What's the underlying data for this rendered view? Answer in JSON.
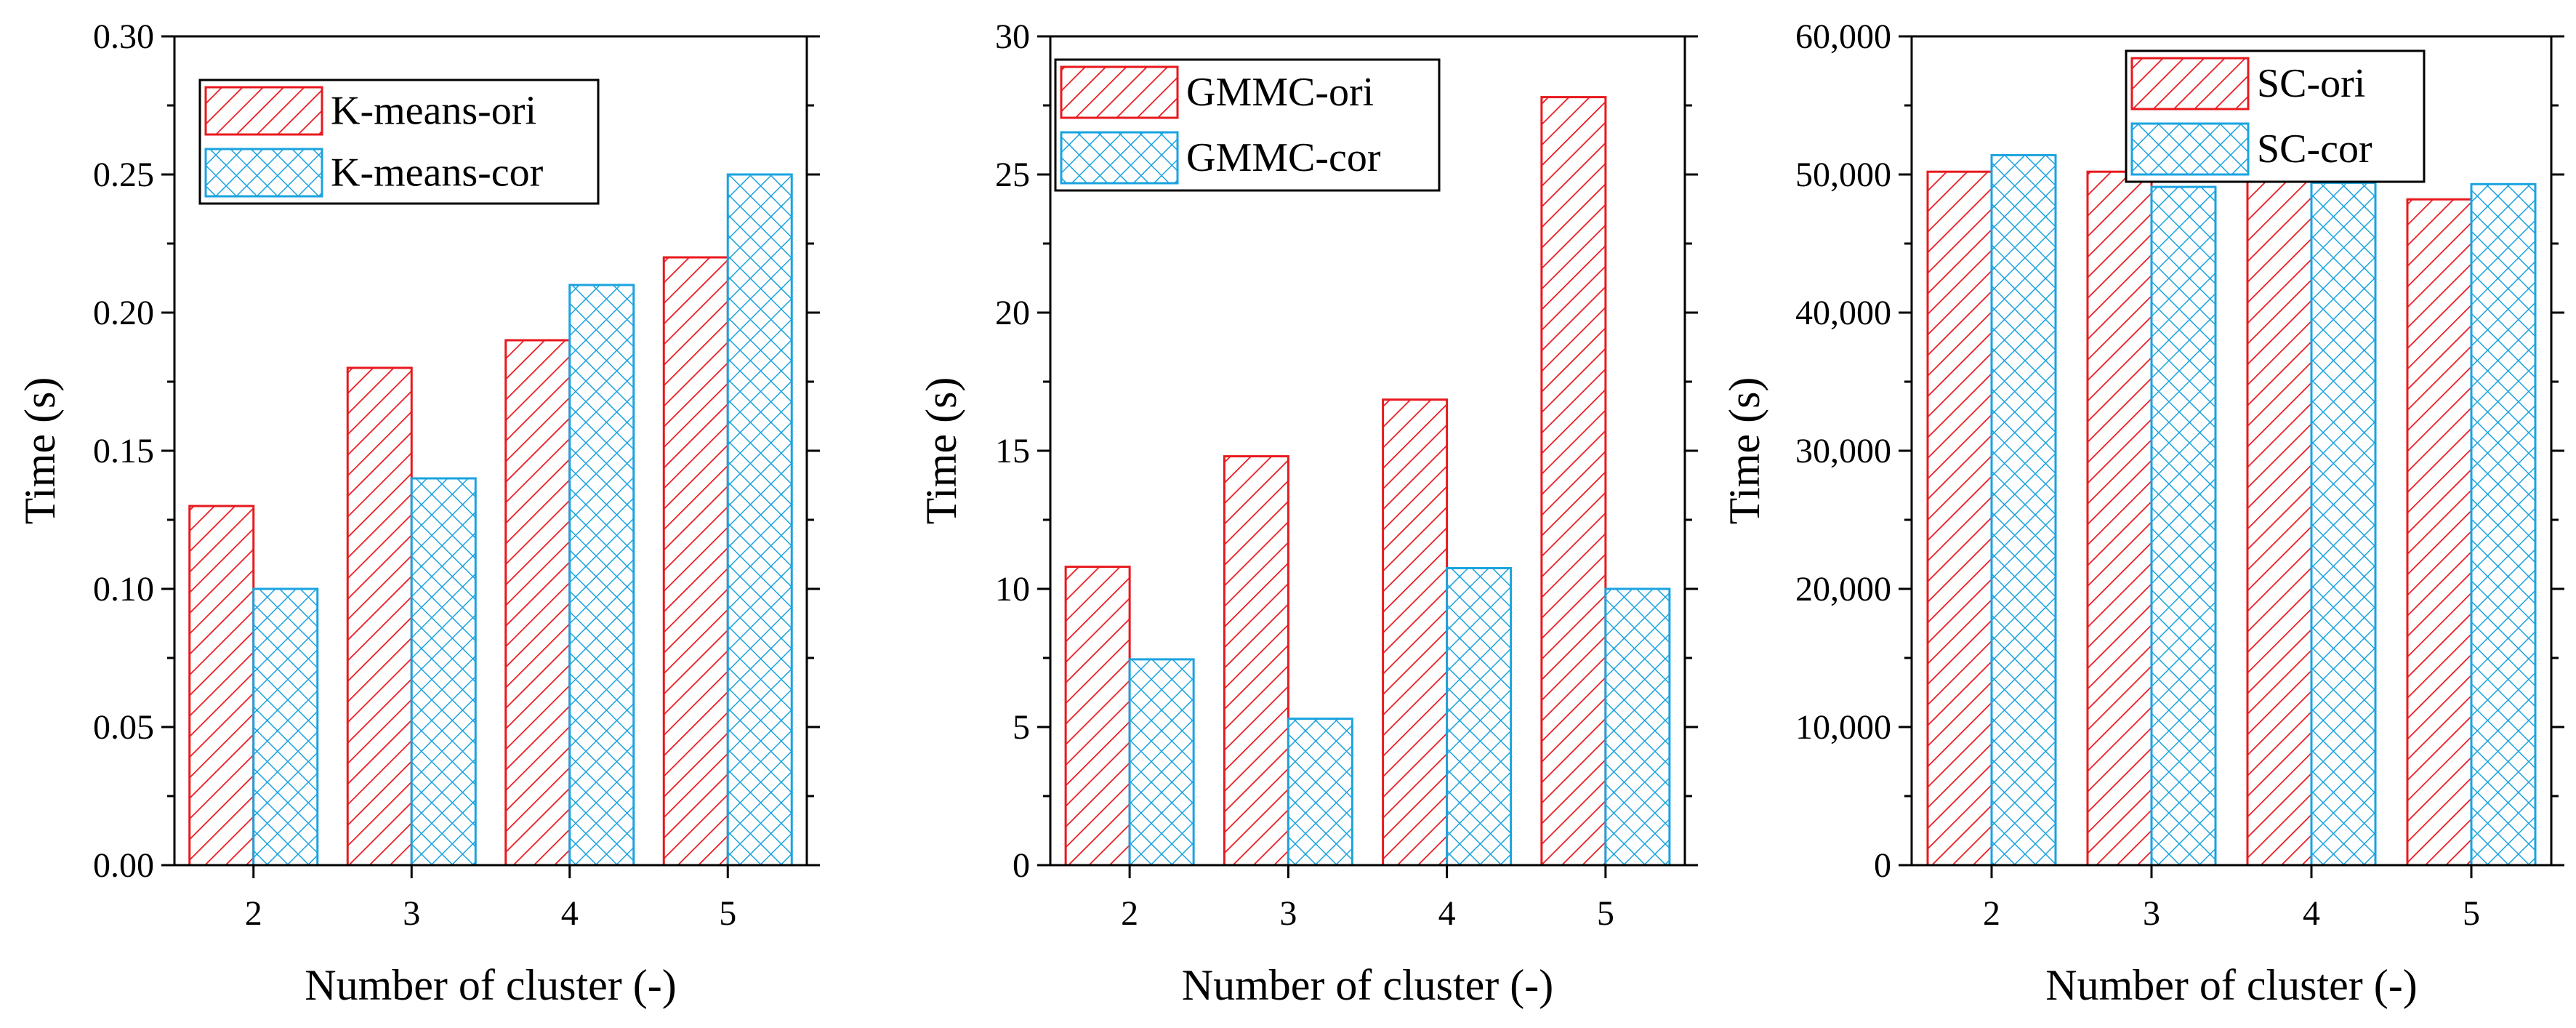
{
  "colors": {
    "ori": "#e8191e",
    "cor": "#1aa3e0",
    "axis": "#000000"
  },
  "chart_data": [
    {
      "type": "bar",
      "xlabel": "Number of cluster (-)",
      "ylabel": "Time (s)",
      "categories": [
        "2",
        "3",
        "4",
        "5"
      ],
      "ylim": [
        0,
        0.3
      ],
      "yticks": [
        0,
        0.05,
        0.1,
        0.15,
        0.2,
        0.25,
        0.3
      ],
      "ytick_labels": [
        "0.00",
        "0.05",
        "0.10",
        "0.15",
        "0.20",
        "0.25",
        "0.30"
      ],
      "legend_position": "top-left",
      "series": [
        {
          "name": "K-means-ori",
          "pattern": "hatch",
          "values": [
            0.13,
            0.18,
            0.19,
            0.22
          ]
        },
        {
          "name": "K-means-cor",
          "pattern": "crosshatch",
          "values": [
            0.1,
            0.14,
            0.21,
            0.25
          ]
        }
      ]
    },
    {
      "type": "bar",
      "xlabel": "Number of cluster (-)",
      "ylabel": "Time (s)",
      "categories": [
        "2",
        "3",
        "4",
        "5"
      ],
      "ylim": [
        0,
        30
      ],
      "yticks": [
        0,
        5,
        10,
        15,
        20,
        25,
        30
      ],
      "ytick_labels": [
        "0",
        "5",
        "10",
        "15",
        "20",
        "25",
        "30"
      ],
      "legend_position": "top-left",
      "series": [
        {
          "name": "GMMC-ori",
          "pattern": "hatch",
          "values": [
            10.8,
            14.8,
            16.85,
            27.8
          ]
        },
        {
          "name": "GMMC-cor",
          "pattern": "crosshatch",
          "values": [
            7.45,
            5.3,
            10.75,
            10.0
          ]
        }
      ]
    },
    {
      "type": "bar",
      "xlabel": "Number of cluster (-)",
      "ylabel": "Time (s)",
      "categories": [
        "2",
        "3",
        "4",
        "5"
      ],
      "ylim": [
        0,
        60000
      ],
      "yticks": [
        0,
        10000,
        20000,
        30000,
        40000,
        50000,
        60000
      ],
      "ytick_labels": [
        "0",
        "10,000",
        "20,000",
        "30,000",
        "40,000",
        "50,000",
        "60,000"
      ],
      "legend_position": "top-center",
      "series": [
        {
          "name": "SC-ori",
          "pattern": "hatch",
          "values": [
            50200,
            50200,
            49600,
            48200
          ]
        },
        {
          "name": "SC-cor",
          "pattern": "crosshatch",
          "values": [
            51400,
            49100,
            49400,
            49300
          ]
        }
      ]
    }
  ]
}
